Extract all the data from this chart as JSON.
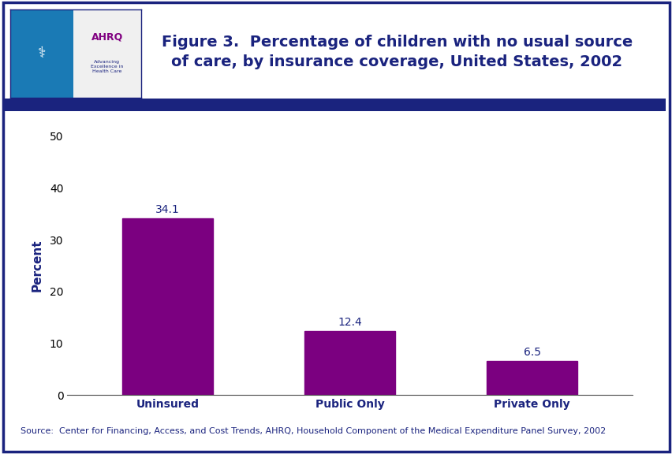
{
  "categories": [
    "Uninsured",
    "Public Only",
    "Private Only"
  ],
  "values": [
    34.1,
    12.4,
    6.5
  ],
  "bar_color": "#7b0080",
  "ylabel": "Percent",
  "ylim": [
    0,
    50
  ],
  "yticks": [
    0,
    10,
    20,
    30,
    40,
    50
  ],
  "title_line1": "Figure 3.  Percentage of children with no usual source",
  "title_line2": "of care, by insurance coverage, United States, 2002",
  "title_color": "#1a237e",
  "title_fontsize": 14,
  "bar_label_fontsize": 10,
  "bar_label_color": "#1a237e",
  "ylabel_color": "#1a237e",
  "ylabel_fontsize": 11,
  "xtick_color": "#1a237e",
  "xtick_fontsize": 10,
  "ytick_color": "#000000",
  "ytick_fontsize": 10,
  "source_text": "Source:  Center for Financing, Access, and Cost Trends, AHRQ, Household Component of the Medical Expenditure Panel Survey, 2002",
  "source_fontsize": 8,
  "source_color": "#1a237e",
  "outer_border_color": "#1a237e",
  "separator_bar_color": "#1a237e",
  "background_color": "#ffffff",
  "bar_width": 0.5,
  "logo_left_color": "#1a7ab5",
  "logo_right_bg": "#ffffff",
  "ahrq_text_color": "#800080",
  "ahrq_sub_color": "#1a237e"
}
